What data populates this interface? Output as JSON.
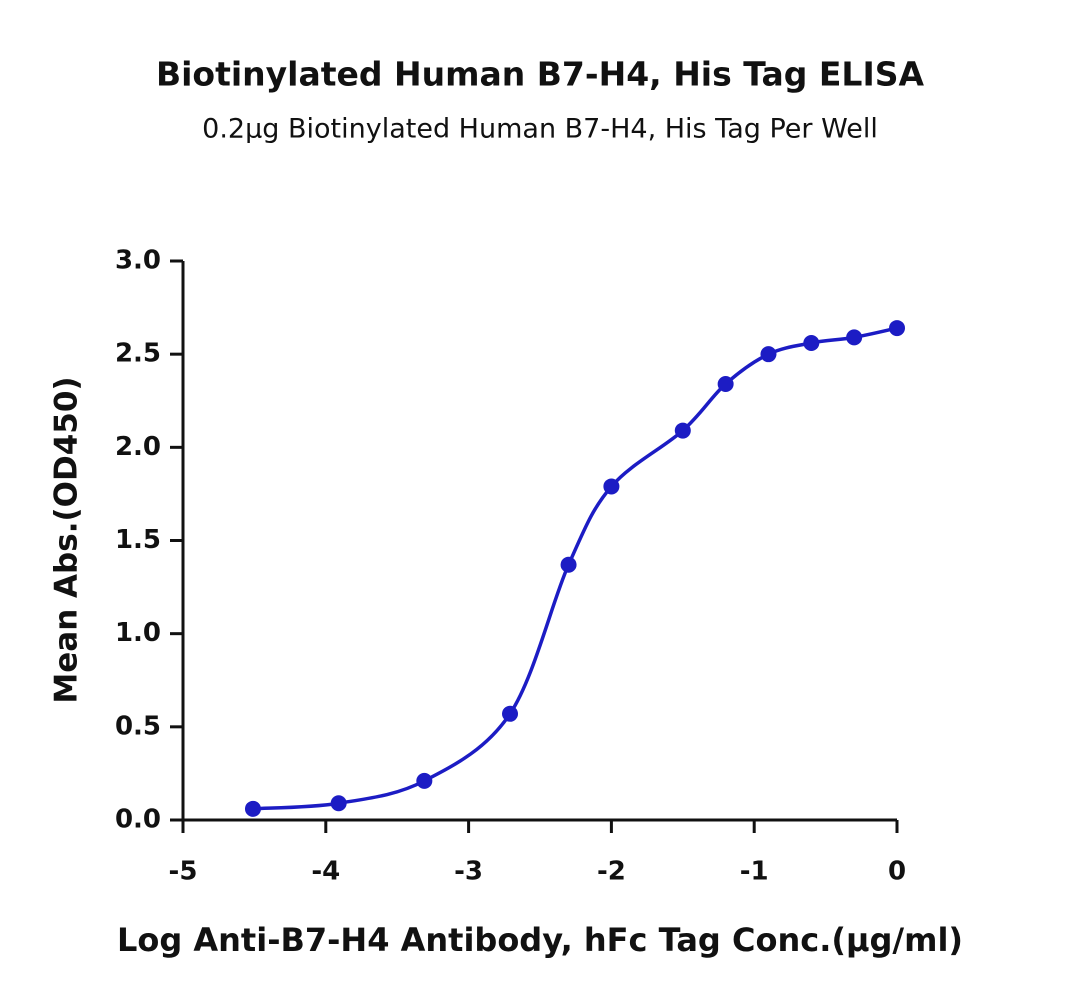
{
  "chart_data": {
    "type": "line",
    "title": "Biotinylated Human B7-H4, His Tag ELISA",
    "subtitle": "0.2μg Biotinylated Human B7-H4, His Tag Per Well",
    "x_label": "Log Anti-B7-H4 Antibody, hFc Tag Conc.(μg/ml)",
    "y_label": "Mean Abs.(OD450)",
    "x": [
      -4.51,
      -3.91,
      -3.31,
      -2.71,
      -2.3,
      -2.0,
      -1.5,
      -1.2,
      -0.9,
      -0.6,
      -0.3,
      0
    ],
    "series": [
      {
        "color": "#1c1cc4",
        "values": [
          0.06,
          0.09,
          0.21,
          0.57,
          1.37,
          1.79,
          2.09,
          2.34,
          2.5,
          2.56,
          2.59,
          2.64
        ]
      }
    ],
    "xlim": [
      -5,
      0
    ],
    "xticks": [
      -5,
      -4,
      -3,
      -2,
      -1,
      0
    ],
    "ylim": [
      0,
      3
    ],
    "yticks": [
      {
        "value": 0,
        "label": "0.0"
      },
      {
        "value": 0.5,
        "label": "0.5"
      },
      {
        "value": 1,
        "label": "1.0"
      },
      {
        "value": 1.5,
        "label": "1.5"
      },
      {
        "value": 2,
        "label": "2.0"
      },
      {
        "value": 2.5,
        "label": "2.5"
      },
      {
        "value": 3,
        "label": "3.0"
      }
    ]
  }
}
